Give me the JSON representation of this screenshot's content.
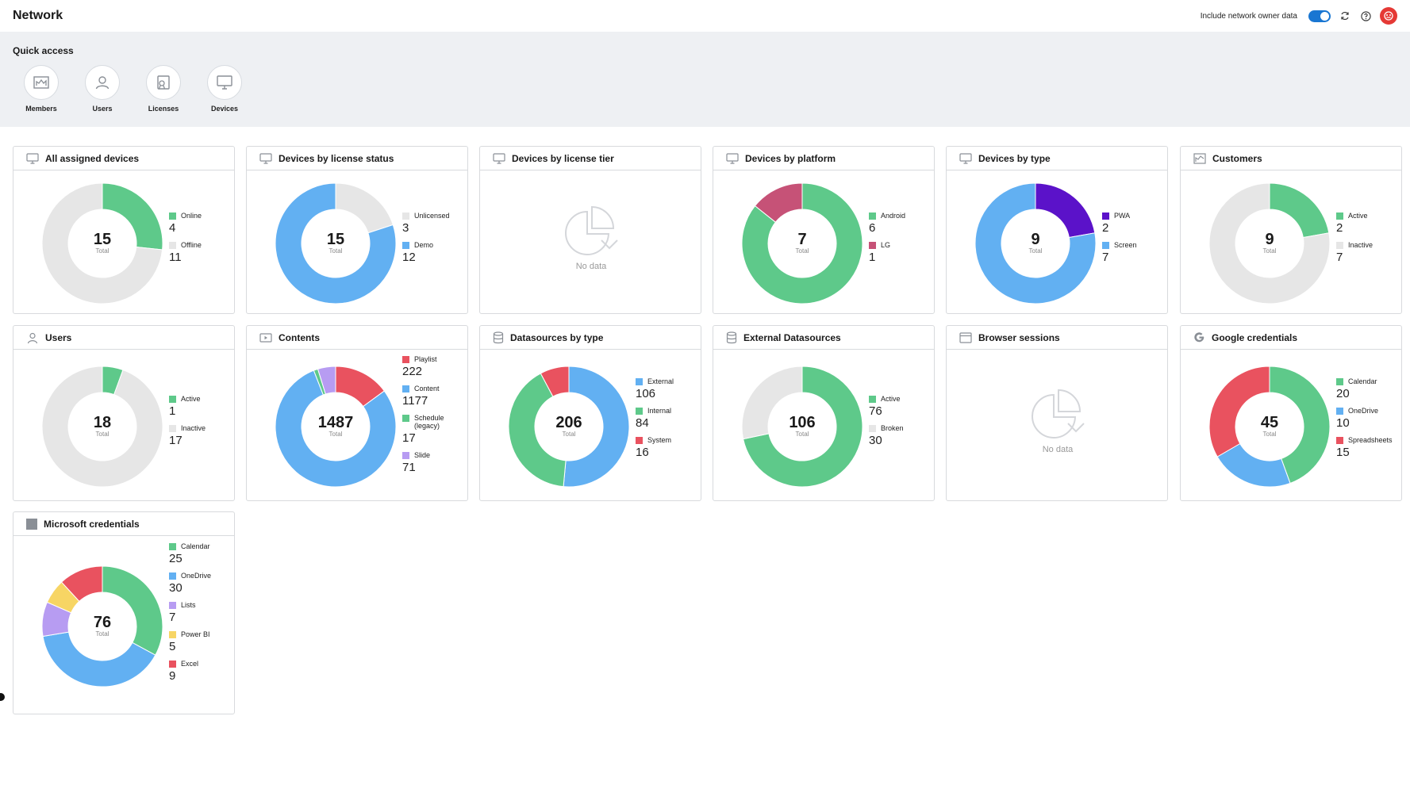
{
  "header": {
    "title": "Network",
    "toggle_label": "Include network owner data",
    "toggle_on": true,
    "icons": [
      "refresh-icon",
      "help-icon",
      "avatar-icon"
    ]
  },
  "quick_access": {
    "title": "Quick access",
    "items": [
      {
        "label": "Members",
        "icon": "members-icon"
      },
      {
        "label": "Users",
        "icon": "user-icon"
      },
      {
        "label": "Licenses",
        "icon": "license-icon"
      },
      {
        "label": "Devices",
        "icon": "monitor-icon"
      }
    ]
  },
  "colors": {
    "green": "#5ec98a",
    "blue": "#62b0f2",
    "grey": "#e6e6e6",
    "red": "#e9525f",
    "purple": "#b79cf2",
    "violet": "#5b12c9",
    "rose": "#c65277",
    "yellow": "#f7d564"
  },
  "total_label": "Total",
  "no_data_label": "No data",
  "cards": [
    {
      "title": "All assigned devices",
      "icon": "monitor-icon",
      "total": "15",
      "chart_data": {
        "type": "pie",
        "series": [
          {
            "name": "Online",
            "value": 4,
            "color": "#5ec98a"
          },
          {
            "name": "Offline",
            "value": 11,
            "color": "#e6e6e6"
          }
        ]
      }
    },
    {
      "title": "Devices by license status",
      "icon": "monitor-icon",
      "total": "15",
      "chart_data": {
        "type": "pie",
        "series": [
          {
            "name": "Unlicensed",
            "value": 3,
            "color": "#e6e6e6"
          },
          {
            "name": "Demo",
            "value": 12,
            "color": "#62b0f2"
          }
        ]
      }
    },
    {
      "title": "Devices by license tier",
      "icon": "monitor-icon",
      "total": null,
      "chart_data": {
        "type": "pie",
        "series": []
      }
    },
    {
      "title": "Devices by platform",
      "icon": "monitor-icon",
      "total": "7",
      "chart_data": {
        "type": "pie",
        "series": [
          {
            "name": "Android",
            "value": 6,
            "color": "#5ec98a"
          },
          {
            "name": "LG",
            "value": 1,
            "color": "#c65277"
          }
        ]
      }
    },
    {
      "title": "Devices by type",
      "icon": "monitor-icon",
      "total": "9",
      "chart_data": {
        "type": "pie",
        "series": [
          {
            "name": "PWA",
            "value": 2,
            "color": "#5b12c9"
          },
          {
            "name": "Screen",
            "value": 7,
            "color": "#62b0f2"
          }
        ]
      }
    },
    {
      "title": "Customers",
      "icon": "chart-icon",
      "total": "9",
      "chart_data": {
        "type": "pie",
        "series": [
          {
            "name": "Active",
            "value": 2,
            "color": "#5ec98a"
          },
          {
            "name": "Inactive",
            "value": 7,
            "color": "#e6e6e6"
          }
        ]
      }
    },
    {
      "title": "Users",
      "icon": "user-icon",
      "total": "18",
      "chart_data": {
        "type": "pie",
        "series": [
          {
            "name": "Active",
            "value": 1,
            "color": "#5ec98a"
          },
          {
            "name": "Inactive",
            "value": 17,
            "color": "#e6e6e6"
          }
        ]
      }
    },
    {
      "title": "Contents",
      "icon": "play-icon",
      "total": "1487",
      "chart_data": {
        "type": "pie",
        "series": [
          {
            "name": "Playlist",
            "value": 222,
            "color": "#e9525f"
          },
          {
            "name": "Content",
            "value": 1177,
            "color": "#62b0f2"
          },
          {
            "name": "Schedule (legacy)",
            "value": 17,
            "color": "#5ec98a"
          },
          {
            "name": "Slide",
            "value": 71,
            "color": "#b79cf2"
          }
        ]
      }
    },
    {
      "title": "Datasources by type",
      "icon": "database-icon",
      "total": "206",
      "chart_data": {
        "type": "pie",
        "series": [
          {
            "name": "External",
            "value": 106,
            "color": "#62b0f2"
          },
          {
            "name": "Internal",
            "value": 84,
            "color": "#5ec98a"
          },
          {
            "name": "System",
            "value": 16,
            "color": "#e9525f"
          }
        ]
      }
    },
    {
      "title": "External Datasources",
      "icon": "database-icon",
      "total": "106",
      "chart_data": {
        "type": "pie",
        "series": [
          {
            "name": "Active",
            "value": 76,
            "color": "#5ec98a"
          },
          {
            "name": "Broken",
            "value": 30,
            "color": "#e6e6e6"
          }
        ]
      }
    },
    {
      "title": "Browser sessions",
      "icon": "browser-icon",
      "total": null,
      "chart_data": {
        "type": "pie",
        "series": []
      }
    },
    {
      "title": "Google credentials",
      "icon": "google-icon",
      "total": "45",
      "chart_data": {
        "type": "pie",
        "series": [
          {
            "name": "Calendar",
            "value": 20,
            "color": "#5ec98a"
          },
          {
            "name": "OneDrive",
            "value": 10,
            "color": "#62b0f2"
          },
          {
            "name": "Spreadsheets",
            "value": 15,
            "color": "#e9525f"
          }
        ]
      }
    },
    {
      "title": "Microsoft credentials",
      "icon": "microsoft-icon",
      "total": "76",
      "chart_data": {
        "type": "pie",
        "series": [
          {
            "name": "Calendar",
            "value": 25,
            "color": "#5ec98a"
          },
          {
            "name": "OneDrive",
            "value": 30,
            "color": "#62b0f2"
          },
          {
            "name": "Lists",
            "value": 7,
            "color": "#b79cf2"
          },
          {
            "name": "Power BI",
            "value": 5,
            "color": "#f7d564"
          },
          {
            "name": "Excel",
            "value": 9,
            "color": "#e9525f"
          }
        ]
      }
    }
  ]
}
